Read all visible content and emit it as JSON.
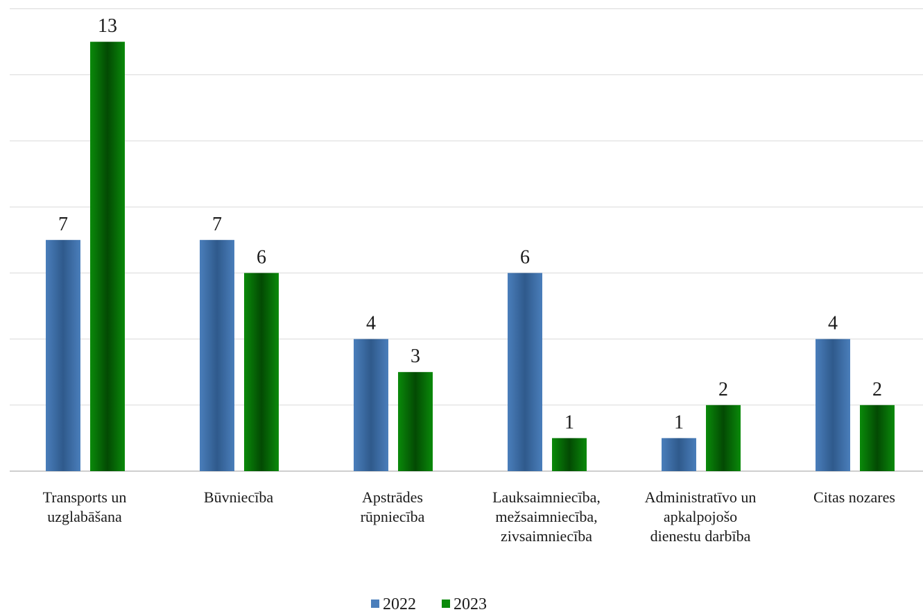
{
  "chart_data": {
    "type": "bar",
    "categories": [
      [
        "Transports un",
        "uzglabāšana"
      ],
      [
        "Būvniecība"
      ],
      [
        "Apstrādes",
        "rūpniecība"
      ],
      [
        "Lauksaimniecība,",
        "mežsaimniecība,",
        "zivsaimniecība"
      ],
      [
        "Administratīvo un",
        "apkalpojošo",
        "dienestu darbība"
      ],
      [
        "Citas nozares"
      ]
    ],
    "series": [
      {
        "name": "2022",
        "values": [
          7,
          7,
          4,
          6,
          1,
          4
        ]
      },
      {
        "name": "2023",
        "values": [
          13,
          6,
          3,
          1,
          2,
          2
        ]
      }
    ],
    "ylim": [
      0,
      14
    ],
    "grid": true,
    "legend": "bottom",
    "colors": {
      "series_2022": "#4a7ebb",
      "series_2022_dark": "#2f5a8c",
      "series_2023": "#0a8a0a",
      "series_2023_dark": "#034a03"
    }
  }
}
